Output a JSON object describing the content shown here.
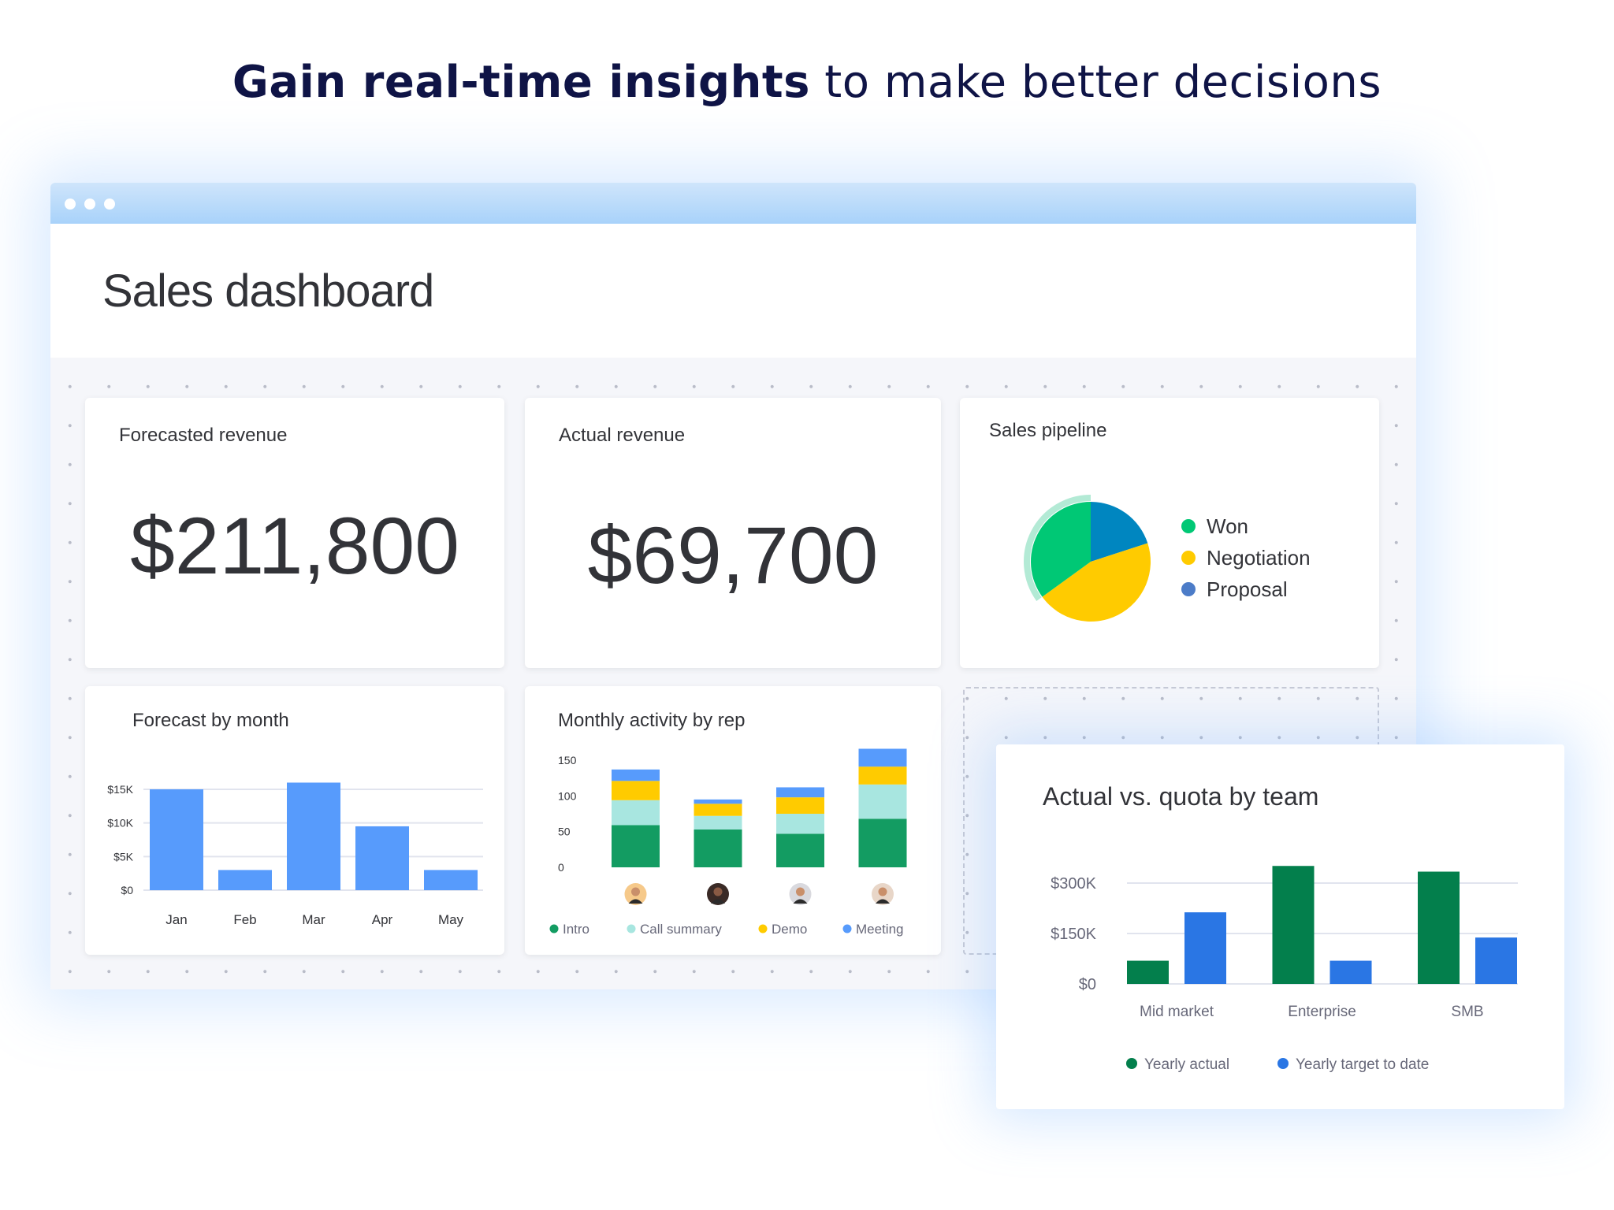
{
  "headline": {
    "bold": "Gain real-time insights",
    "rest": " to make better decisions"
  },
  "window": {
    "title": "Sales dashboard"
  },
  "forecasted_revenue": {
    "title": "Forecasted revenue",
    "value": "$211,800"
  },
  "actual_revenue": {
    "title": "Actual revenue",
    "value": "$69,700"
  },
  "colors": {
    "bar_blue": "#579bfc",
    "intro": "#139c62",
    "call_summary": "#a8e6e0",
    "demo": "#ffcb00",
    "meeting": "#579bfc",
    "won": "#00c875",
    "negotiation": "#ffcb00",
    "proposal": "#0086c0",
    "yearly_actual": "#037f4c",
    "yearly_target": "#2a76e4"
  },
  "chart_data": [
    {
      "id": "sales_pipeline",
      "type": "pie",
      "title": "Sales pipeline",
      "legend": "right",
      "slices": [
        {
          "name": "Won",
          "value": 35,
          "color": "#00c875",
          "legend_color": "#00c875"
        },
        {
          "name": "Negotiation",
          "value": 45,
          "color": "#ffcb00",
          "legend_color": "#ffcb00"
        },
        {
          "name": "Proposal",
          "value": 20,
          "color": "#0086c0",
          "legend_color": "#4c7cc8"
        }
      ]
    },
    {
      "id": "forecast_by_month",
      "type": "bar",
      "title": "Forecast by month",
      "categories": [
        "Jan",
        "Feb",
        "Mar",
        "Apr",
        "May"
      ],
      "values": [
        15000,
        3000,
        16000,
        9500,
        3000
      ],
      "yticks": [
        {
          "v": 0,
          "label": "$0"
        },
        {
          "v": 5000,
          "label": "$5K"
        },
        {
          "v": 10000,
          "label": "$10K"
        },
        {
          "v": 15000,
          "label": "$15K"
        }
      ],
      "ylim": [
        0,
        15000
      ],
      "grid": true,
      "color": "#579bfc"
    },
    {
      "id": "monthly_activity_by_rep",
      "type": "bar",
      "stacked": true,
      "title": "Monthly activity by rep",
      "categories": [
        "rep-1",
        "rep-2",
        "rep-3",
        "rep-4"
      ],
      "series": [
        {
          "name": "Intro",
          "values": [
            59,
            53,
            47,
            68
          ],
          "color": "#139c62"
        },
        {
          "name": "Call summary",
          "values": [
            35,
            19,
            28,
            48
          ],
          "color": "#a8e6e0"
        },
        {
          "name": "Demo",
          "values": [
            27,
            17,
            23,
            25
          ],
          "color": "#ffcb00"
        },
        {
          "name": "Meeting",
          "values": [
            16,
            6,
            14,
            25
          ],
          "color": "#579bfc"
        }
      ],
      "yticks": [
        0,
        50,
        100,
        150
      ],
      "ylim": [
        0,
        150
      ],
      "grid": false,
      "legend": "bottom",
      "avatar_colors": [
        "#f6c98a",
        "#3a2a26",
        "#d9d9de",
        "#e8d6c8"
      ]
    },
    {
      "id": "actual_vs_quota_by_team",
      "type": "bar",
      "title": "Actual vs. quota by team",
      "categories": [
        "Mid market",
        "Enterprise",
        "SMB"
      ],
      "series": [
        {
          "name": "Yearly actual",
          "values": [
            69000,
            351000,
            334000
          ],
          "color": "#037f4c"
        },
        {
          "name": "Yearly target to date",
          "values": [
            213000,
            69000,
            138000
          ],
          "color": "#2a76e4"
        }
      ],
      "yticks": [
        {
          "v": 0,
          "label": "$0"
        },
        {
          "v": 150000,
          "label": "$150K"
        },
        {
          "v": 300000,
          "label": "$300K"
        }
      ],
      "ylim": [
        0,
        300000
      ],
      "grid": true,
      "legend": "bottom"
    }
  ]
}
